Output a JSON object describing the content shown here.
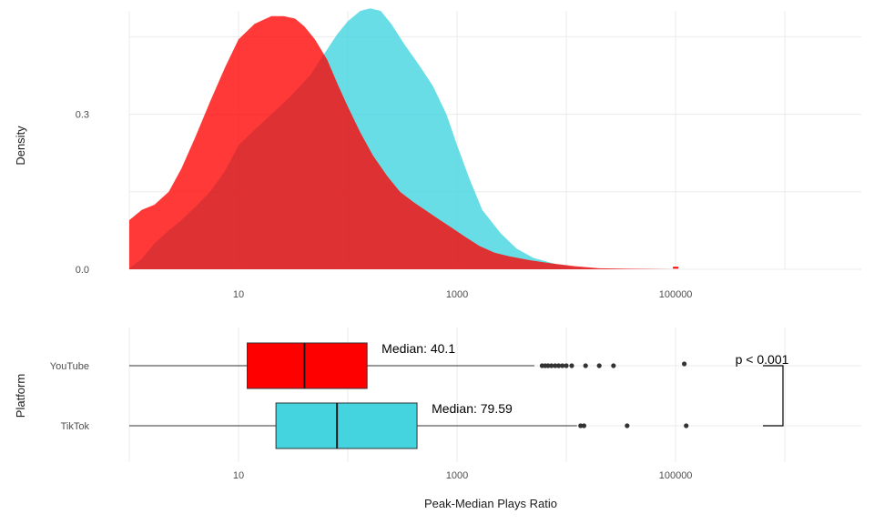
{
  "colors": {
    "youtube": "#ff0000",
    "tiktok": "#43d4e0",
    "overlap": "#e02c2c",
    "whisker": "#333333",
    "outlier": "#333333"
  },
  "chart_data": [
    {
      "type": "area",
      "subtype": "density",
      "ylabel": "Density",
      "xscale": "log10",
      "xlim": [
        1,
        5000000
      ],
      "ylim": [
        0,
        0.5
      ],
      "xticks": [
        {
          "v": 10,
          "label": "10"
        },
        {
          "v": 1000,
          "label": "1000"
        },
        {
          "v": 100000,
          "label": "100000"
        }
      ],
      "yticks": [
        {
          "v": 0.0,
          "label": "0.0"
        },
        {
          "v": 0.3,
          "label": "0.3"
        }
      ],
      "series": [
        {
          "key": "tiktok",
          "x": [
            1,
            1.3,
            1.7,
            2.3,
            3,
            4,
            5.5,
            7.5,
            10,
            14,
            20,
            30,
            45,
            60,
            80,
            100,
            130,
            160,
            200,
            250,
            330,
            450,
            600,
            800,
            1000,
            1300,
            1700,
            2500,
            3500,
            5000,
            8000,
            12000,
            20000,
            40000,
            100000
          ],
          "y": [
            0.002,
            0.02,
            0.05,
            0.075,
            0.095,
            0.12,
            0.15,
            0.19,
            0.24,
            0.27,
            0.3,
            0.335,
            0.375,
            0.415,
            0.455,
            0.48,
            0.5,
            0.505,
            0.5,
            0.475,
            0.435,
            0.395,
            0.355,
            0.3,
            0.24,
            0.175,
            0.115,
            0.07,
            0.04,
            0.022,
            0.01,
            0.004,
            0.001,
            0.0002,
            0.0
          ]
        },
        {
          "key": "youtube",
          "x": [
            1,
            1.3,
            1.7,
            2.3,
            3,
            4,
            5.5,
            7.5,
            10,
            14,
            20,
            26,
            33,
            40,
            50,
            65,
            80,
            100,
            130,
            170,
            230,
            300,
            400,
            550,
            700,
            900,
            1200,
            1600,
            2200,
            3000,
            4500,
            7000,
            12000,
            20000,
            35000,
            100000
          ],
          "y": [
            0.095,
            0.115,
            0.125,
            0.15,
            0.195,
            0.255,
            0.325,
            0.39,
            0.445,
            0.475,
            0.49,
            0.49,
            0.485,
            0.47,
            0.445,
            0.405,
            0.36,
            0.315,
            0.265,
            0.22,
            0.18,
            0.15,
            0.13,
            0.11,
            0.095,
            0.08,
            0.062,
            0.045,
            0.032,
            0.025,
            0.018,
            0.012,
            0.006,
            0.002,
            0.001,
            0.0
          ]
        }
      ],
      "annotations": [
        {
          "x": 100000,
          "y": 0.003,
          "type": "dot"
        }
      ]
    },
    {
      "type": "box",
      "ylabel": "Platform",
      "xlabel": "Peak-Median Plays Ratio",
      "xscale": "log10",
      "xlim": [
        1,
        5000000
      ],
      "categories": [
        "YouTube",
        "TikTok"
      ],
      "xticks": [
        {
          "v": 10,
          "label": "10"
        },
        {
          "v": 1000,
          "label": "1000"
        },
        {
          "v": 100000,
          "label": "100000"
        }
      ],
      "series": [
        {
          "key": "youtube",
          "category": "YouTube",
          "whisker_low": 1,
          "q1": 12,
          "median": 40.1,
          "q3": 150,
          "whisker_high": 5100,
          "outliers": [
            6000,
            6400,
            6800,
            7300,
            7900,
            8500,
            9200,
            10000,
            11200,
            15000,
            20000,
            27000
          ],
          "median_label": "Median: 40.1"
        },
        {
          "key": "tiktok",
          "category": "TikTok",
          "whisker_low": 1,
          "q1": 22,
          "median": 79.59,
          "q3": 430,
          "whisker_high": 12500,
          "outliers": [
            13500,
            14500,
            36000,
            125000
          ],
          "median_label": "Median: 79.59"
        }
      ],
      "significance": {
        "label": "p < 0.001",
        "dot_x": 120000
      }
    }
  ]
}
